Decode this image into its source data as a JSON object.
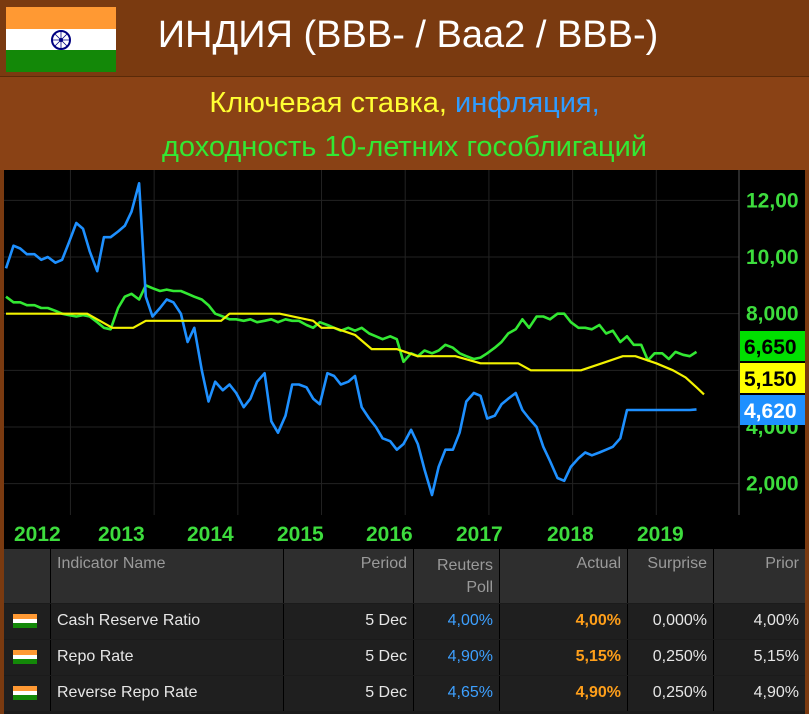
{
  "header": {
    "title": "ИНДИЯ (BBB- / Baa2 / BBB-)",
    "subtitle_parts": [
      {
        "text": "Ключевая ставка, ",
        "color": "#ffff33"
      },
      {
        "text": "инфляция,",
        "color": "#2f9cff"
      }
    ],
    "subtitle_line2": {
      "text": "доходность 10-летних гособлигаций",
      "color": "#33e833"
    }
  },
  "colors": {
    "saffron": "#ff9933",
    "india_green": "#138808",
    "chakra": "#000080",
    "repo_line": "#f2f200",
    "inflation_line": "#1e90ff",
    "yield_line": "#33e833"
  },
  "chart_data": {
    "type": "line",
    "x_ticks": [
      "2012",
      "2013",
      "2014",
      "2015",
      "2016",
      "2017",
      "2018",
      "2019"
    ],
    "y_ticks": [
      "2,000",
      "4,000",
      "8,000",
      "10,00",
      "12,00"
    ],
    "y_range": [
      1.0,
      13.0
    ],
    "last_values": [
      {
        "label": "6,650",
        "value": 6.65,
        "bg": "#00e000"
      },
      {
        "label": "5,150",
        "value": 5.15,
        "bg": "#ffff00"
      },
      {
        "label": "4,620",
        "value": 4.62,
        "bg": "#1e90ff"
      }
    ],
    "series": [
      {
        "key": "yield",
        "x": [
          2011.33,
          2011.42,
          2011.5,
          2011.58,
          2011.67,
          2011.75,
          2011.83,
          2011.92,
          2012.0,
          2012.08,
          2012.17,
          2012.25,
          2012.33,
          2012.42,
          2012.5,
          2012.58,
          2012.67,
          2012.75,
          2012.83,
          2012.92,
          2013.0,
          2013.08,
          2013.17,
          2013.25,
          2013.33,
          2013.42,
          2013.5,
          2013.58,
          2013.67,
          2013.75,
          2013.83,
          2013.92,
          2014.0,
          2014.08,
          2014.17,
          2014.25,
          2014.33,
          2014.42,
          2014.5,
          2014.58,
          2014.67,
          2014.75,
          2014.83,
          2014.92,
          2015.0,
          2015.08,
          2015.17,
          2015.25,
          2015.33,
          2015.42,
          2015.5,
          2015.58,
          2015.67,
          2015.75,
          2015.83,
          2015.92,
          2016.0,
          2016.08,
          2016.17,
          2016.25,
          2016.33,
          2016.42,
          2016.5,
          2016.58,
          2016.67,
          2016.75,
          2016.83,
          2016.92,
          2017.0,
          2017.08,
          2017.17,
          2017.25,
          2017.33,
          2017.42,
          2017.5,
          2017.58,
          2017.67,
          2017.75,
          2017.83,
          2017.92,
          2018.0,
          2018.08,
          2018.17,
          2018.25,
          2018.33,
          2018.42,
          2018.5,
          2018.58,
          2018.67,
          2018.75,
          2018.83,
          2018.92,
          2019.0,
          2019.08,
          2019.17,
          2019.25,
          2019.33,
          2019.42,
          2019.5,
          2019.58
        ],
        "values": [
          8.6,
          8.4,
          8.4,
          8.3,
          8.3,
          8.2,
          8.2,
          8.1,
          8.0,
          7.95,
          7.9,
          7.95,
          7.9,
          7.7,
          7.5,
          7.45,
          8.2,
          8.6,
          8.7,
          8.5,
          9.0,
          8.9,
          8.8,
          8.85,
          8.8,
          8.8,
          8.7,
          8.6,
          8.5,
          8.3,
          8.0,
          7.9,
          7.8,
          7.8,
          7.75,
          7.8,
          7.7,
          7.75,
          7.8,
          7.7,
          7.8,
          7.75,
          7.75,
          7.6,
          7.5,
          7.7,
          7.6,
          7.5,
          7.4,
          7.5,
          7.4,
          7.5,
          7.3,
          7.2,
          7.1,
          7.2,
          7.1,
          6.3,
          6.6,
          6.5,
          6.7,
          6.6,
          6.7,
          6.9,
          6.8,
          6.6,
          6.5,
          6.4,
          6.45,
          6.6,
          6.8,
          7.0,
          7.3,
          7.45,
          7.8,
          7.5,
          7.9,
          7.9,
          7.8,
          8.0,
          8.0,
          7.7,
          7.5,
          7.5,
          7.45,
          7.6,
          7.3,
          7.4,
          7.0,
          7.2,
          6.9,
          6.9,
          6.35,
          6.6,
          6.6,
          6.4,
          6.65,
          6.55,
          6.5,
          6.65
        ]
      },
      {
        "key": "inflation",
        "x": [
          2011.33,
          2011.42,
          2011.5,
          2011.58,
          2011.67,
          2011.75,
          2011.83,
          2011.92,
          2012.0,
          2012.08,
          2012.17,
          2012.25,
          2012.33,
          2012.42,
          2012.5,
          2012.58,
          2012.67,
          2012.75,
          2012.83,
          2012.92,
          2013.0,
          2013.08,
          2013.17,
          2013.25,
          2013.33,
          2013.42,
          2013.5,
          2013.58,
          2013.67,
          2013.75,
          2013.83,
          2013.92,
          2014.0,
          2014.08,
          2014.17,
          2014.25,
          2014.33,
          2014.42,
          2014.5,
          2014.58,
          2014.67,
          2014.75,
          2014.83,
          2014.92,
          2015.0,
          2015.08,
          2015.17,
          2015.25,
          2015.33,
          2015.42,
          2015.5,
          2015.58,
          2015.67,
          2015.75,
          2015.83,
          2015.92,
          2016.0,
          2016.08,
          2016.17,
          2016.25,
          2016.33,
          2016.42,
          2016.5,
          2016.58,
          2016.67,
          2016.75,
          2016.83,
          2016.92,
          2017.0,
          2017.08,
          2017.17,
          2017.25,
          2017.33,
          2017.42,
          2017.5,
          2017.58,
          2017.67,
          2017.75,
          2017.83,
          2017.92,
          2018.0,
          2018.08,
          2018.17,
          2018.25,
          2018.33,
          2018.42,
          2018.5,
          2018.58,
          2018.67,
          2018.75,
          2018.83,
          2018.92,
          2019.0,
          2019.08,
          2019.17,
          2019.25,
          2019.33,
          2019.42,
          2019.5,
          2019.58
        ],
        "values": [
          9.6,
          10.4,
          10.3,
          10.1,
          10.1,
          9.9,
          10.0,
          9.8,
          9.9,
          10.5,
          11.2,
          11.0,
          10.2,
          9.5,
          10.7,
          10.7,
          10.9,
          11.1,
          11.6,
          12.6,
          8.6,
          7.9,
          8.2,
          8.5,
          8.4,
          8.0,
          7.0,
          7.5,
          6.0,
          4.9,
          5.6,
          5.3,
          5.5,
          5.2,
          4.7,
          5.0,
          5.6,
          5.9,
          4.2,
          3.8,
          4.4,
          5.5,
          5.5,
          5.4,
          5.0,
          4.8,
          5.9,
          5.8,
          5.5,
          5.6,
          5.8,
          4.7,
          4.3,
          4.0,
          3.6,
          3.5,
          3.2,
          3.4,
          3.9,
          3.4,
          2.5,
          1.6,
          2.6,
          3.2,
          3.2,
          3.8,
          4.9,
          5.2,
          5.1,
          4.3,
          4.4,
          4.8,
          5.0,
          5.2,
          4.6,
          4.3,
          4.0,
          3.3,
          2.8,
          2.2,
          2.1,
          2.6,
          2.9,
          3.1,
          3.0,
          3.1,
          3.2,
          3.3,
          3.6,
          4.6,
          4.6,
          4.6,
          4.6,
          4.6,
          4.6,
          4.6,
          4.6,
          4.6,
          4.6,
          4.62
        ]
      },
      {
        "key": "repo",
        "x": [
          2011.33,
          2011.75,
          2012.0,
          2012.3,
          2012.6,
          2012.85,
          2013.0,
          2013.3,
          2013.55,
          2013.65,
          2013.9,
          2014.0,
          2014.3,
          2014.6,
          2015.0,
          2015.1,
          2015.25,
          2015.5,
          2015.7,
          2016.0,
          2016.25,
          2016.45,
          2016.7,
          2017.0,
          2017.2,
          2017.45,
          2017.6,
          2017.9,
          2018.2,
          2018.45,
          2018.7,
          2018.85,
          2019.1,
          2019.3,
          2019.45,
          2019.58,
          2019.67
        ],
        "values": [
          8.0,
          8.0,
          8.0,
          8.0,
          7.5,
          7.5,
          7.75,
          7.75,
          7.75,
          7.75,
          7.75,
          8.0,
          8.0,
          8.0,
          7.75,
          7.5,
          7.5,
          7.25,
          6.75,
          6.75,
          6.5,
          6.5,
          6.5,
          6.25,
          6.25,
          6.25,
          6.0,
          6.0,
          6.0,
          6.25,
          6.5,
          6.5,
          6.25,
          6.0,
          5.75,
          5.4,
          5.15
        ]
      }
    ]
  },
  "table": {
    "headers": [
      "Indicator Name",
      "Period",
      "Reuters\nPoll",
      "Actual",
      "Surprise",
      "Prior"
    ],
    "rows": [
      {
        "name": "Cash Reserve Ratio",
        "period": "5 Dec",
        "poll": "4,00%",
        "actual": "4,00%",
        "surprise": "0,000%",
        "prior": "4,00%"
      },
      {
        "name": "Repo Rate",
        "period": "5 Dec",
        "poll": "4,90%",
        "actual": "5,15%",
        "surprise": "0,250%",
        "prior": "5,15%"
      },
      {
        "name": "Reverse Repo Rate",
        "period": "5 Dec",
        "poll": "4,65%",
        "actual": "4,90%",
        "surprise": "0,250%",
        "prior": "4,90%"
      }
    ]
  }
}
